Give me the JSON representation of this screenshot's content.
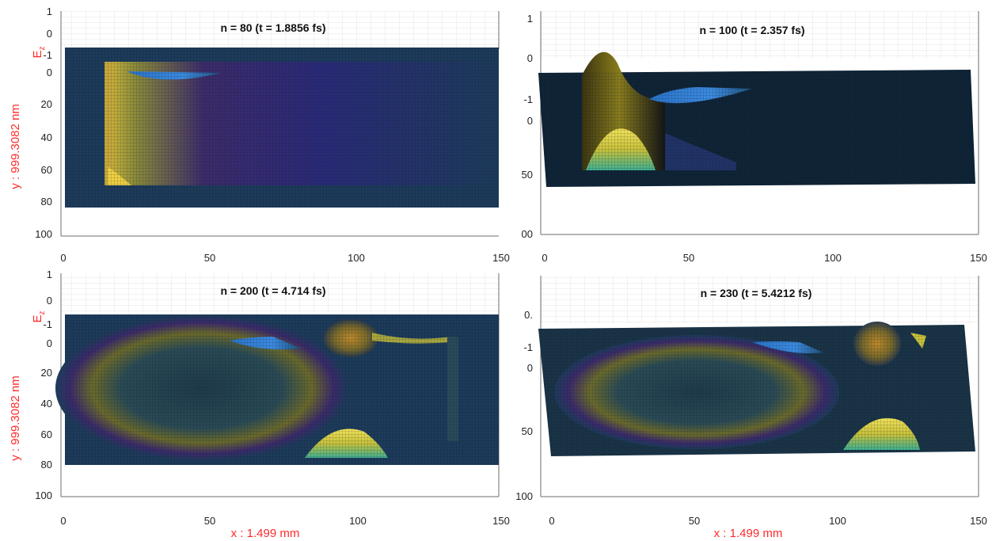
{
  "figure": {
    "colors": {
      "axis": "#6e6e6e",
      "grid": "#dedede",
      "label": "#ff2a2a",
      "sheet": "#1d3b5a",
      "mesh": "#0a1a2a"
    }
  },
  "chart_data": [
    {
      "type": "surface",
      "title": "n = 80 (t = 1.8856 fs)",
      "zlabel": "E",
      "zlabel_sub": "z",
      "ylabel": "y : 999.3082 nm",
      "xlabel": "",
      "xlim": [
        0,
        150
      ],
      "ylim": [
        0,
        100
      ],
      "zlim": [
        -1,
        1
      ],
      "x_ticks": [
        "0",
        "50",
        "100",
        "150"
      ],
      "y_ticks": [
        "0",
        "20",
        "40",
        "60",
        "80",
        "100"
      ],
      "z_ticks": [
        "1",
        "0",
        "-1"
      ],
      "grid": true,
      "colormap": "parula",
      "grid_extent": {
        "x": [
          15,
          150
        ],
        "y": [
          0,
          85
        ]
      },
      "features": [
        {
          "kind": "wavefront",
          "x": 15,
          "y": [
            0,
            70
          ],
          "z": 1.0
        },
        {
          "kind": "dip",
          "x": 33,
          "y": 0,
          "z": -0.6
        },
        {
          "kind": "peak",
          "x": 18,
          "y": 70,
          "z": 0.6
        }
      ]
    },
    {
      "type": "surface",
      "title": "n = 100 (t = 2.357 fs)",
      "zlabel": "",
      "ylabel": "",
      "xlabel": "",
      "xlim": [
        0,
        150
      ],
      "ylim": [
        0,
        100
      ],
      "zlim": [
        -1,
        1
      ],
      "x_ticks": [
        "0",
        "50",
        "100",
        "150"
      ],
      "y_ticks": [
        "0",
        "50",
        "00"
      ],
      "z_ticks": [
        "1",
        "0",
        "-1"
      ],
      "grid": true,
      "colormap": "parula",
      "grid_extent": {
        "x": [
          0,
          150
        ],
        "y": [
          0,
          60
        ]
      },
      "features": [
        {
          "kind": "peak",
          "x": 22,
          "y": 0,
          "z": 0.9
        },
        {
          "kind": "dip",
          "x": 45,
          "y": 0,
          "z": -0.6
        },
        {
          "kind": "peak",
          "x": 25,
          "y": 50,
          "z": 0.8
        }
      ]
    },
    {
      "type": "surface",
      "title": "n = 200 (t = 4.714 fs)",
      "zlabel": "E",
      "zlabel_sub": "z",
      "ylabel": "y : 999.3082 nm",
      "xlabel": "x : 1.499 mm",
      "xlim": [
        0,
        150
      ],
      "ylim": [
        0,
        100
      ],
      "zlim": [
        -1,
        1
      ],
      "x_ticks": [
        "0",
        "50",
        "100",
        "150"
      ],
      "y_ticks": [
        "0",
        "20",
        "40",
        "60",
        "80",
        "100"
      ],
      "z_ticks": [
        "1",
        "0",
        "-1"
      ],
      "grid": true,
      "colormap": "parula",
      "grid_extent": {
        "x": [
          0,
          150
        ],
        "y": [
          0,
          80
        ]
      },
      "features": [
        {
          "kind": "ring",
          "x": 55,
          "y": 40,
          "z": 0.5
        },
        {
          "kind": "peak",
          "x": 98,
          "y": 0,
          "z": 0.7
        },
        {
          "kind": "peak",
          "x": 98,
          "y": 65,
          "z": 0.7
        },
        {
          "kind": "dip",
          "x": 75,
          "y": 0,
          "z": -0.5
        }
      ]
    },
    {
      "type": "surface",
      "title": "n = 230 (t = 5.4212 fs)",
      "zlabel": "",
      "ylabel": "",
      "xlabel": "x : 1.499 mm",
      "xlim": [
        0,
        150
      ],
      "ylim": [
        0,
        100
      ],
      "zlim": [
        -1,
        1
      ],
      "x_ticks": [
        "0",
        "50",
        "100",
        "150"
      ],
      "y_ticks": [
        "0",
        "50",
        "100"
      ],
      "z_ticks": [
        "0.",
        "-1"
      ],
      "grid": true,
      "colormap": "parula",
      "grid_extent": {
        "x": [
          0,
          150
        ],
        "y": [
          0,
          60
        ]
      },
      "features": [
        {
          "kind": "ring",
          "x": 70,
          "y": 30,
          "z": 0.5
        },
        {
          "kind": "peak",
          "x": 113,
          "y": 0,
          "z": 0.8
        },
        {
          "kind": "peak",
          "x": 113,
          "y": 55,
          "z": 0.8
        },
        {
          "kind": "dip",
          "x": 95,
          "y": 0,
          "z": -0.5
        }
      ]
    }
  ]
}
